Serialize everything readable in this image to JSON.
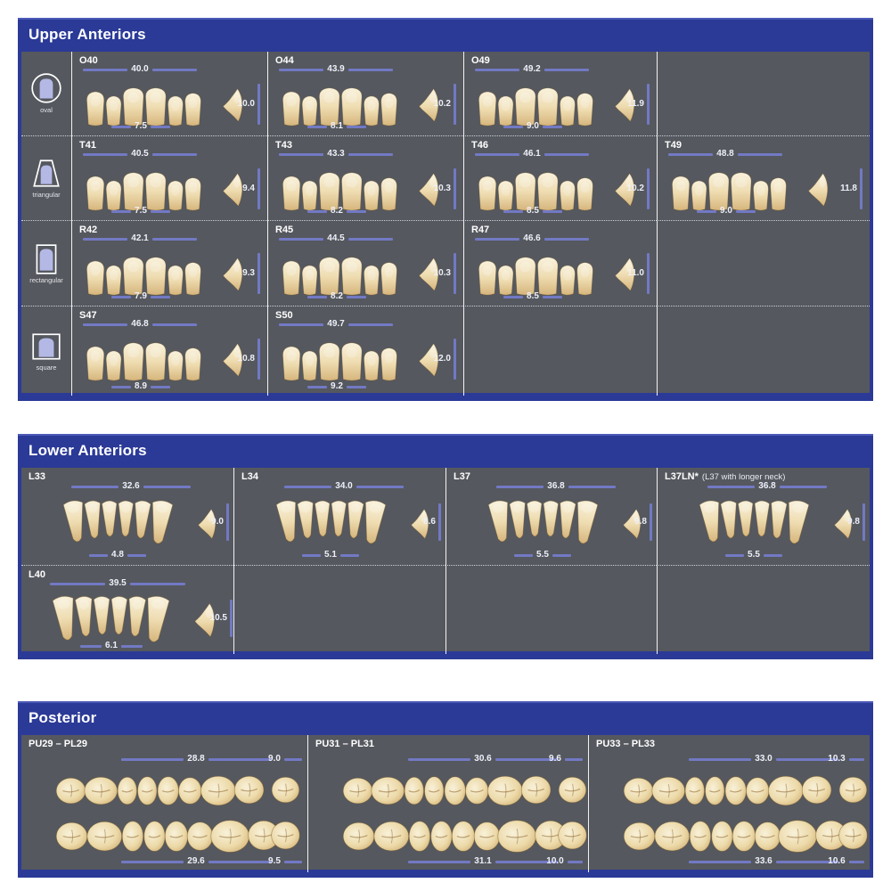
{
  "colors": {
    "panel_blue": "#2b3a97",
    "cell_bg": "#55585e",
    "ruler_line": "#7279c4",
    "tooth_cream": "#efddb2",
    "icon_lavender": "#b4b8e4"
  },
  "sections": {
    "upper": {
      "title": "Upper Anteriors",
      "shapes": [
        {
          "label": "oval"
        },
        {
          "label": "triangular"
        },
        {
          "label": "rectangular"
        },
        {
          "label": "square"
        }
      ],
      "rows": [
        [
          {
            "code": "O40",
            "top": "40.0",
            "side": "10.0",
            "bottom": "7.5"
          },
          {
            "code": "O44",
            "top": "43.9",
            "side": "10.2",
            "bottom": "8.1"
          },
          {
            "code": "O49",
            "top": "49.2",
            "side": "11.9",
            "bottom": "9.0"
          },
          null
        ],
        [
          {
            "code": "T41",
            "top": "40.5",
            "side": "9.4",
            "bottom": "7.5"
          },
          {
            "code": "T43",
            "top": "43.3",
            "side": "10.3",
            "bottom": "8.2"
          },
          {
            "code": "T46",
            "top": "46.1",
            "side": "10.2",
            "bottom": "8.5"
          },
          {
            "code": "T49",
            "top": "48.8",
            "side": "11.8",
            "bottom": "9.0"
          }
        ],
        [
          {
            "code": "R42",
            "top": "42.1",
            "side": "9.3",
            "bottom": "7.9"
          },
          {
            "code": "R45",
            "top": "44.5",
            "side": "10.3",
            "bottom": "8.2"
          },
          {
            "code": "R47",
            "top": "46.6",
            "side": "11.0",
            "bottom": "8.5"
          },
          null
        ],
        [
          {
            "code": "S47",
            "top": "46.8",
            "side": "10.8",
            "bottom": "8.9"
          },
          {
            "code": "S50",
            "top": "49.7",
            "side": "12.0",
            "bottom": "9.2"
          },
          null,
          null
        ]
      ]
    },
    "lower": {
      "title": "Lower Anteriors",
      "rows": [
        [
          {
            "code": "L33",
            "top": "32.6",
            "side": "9.0",
            "bottom": "4.8"
          },
          {
            "code": "L34",
            "top": "34.0",
            "side": "8.6",
            "bottom": "5.1"
          },
          {
            "code": "L37",
            "top": "36.8",
            "side": "9.8",
            "bottom": "5.5"
          },
          {
            "code": "L37LN*",
            "note": "(L37 with longer neck)",
            "top": "36.8",
            "side": "9.8",
            "bottom": "5.5"
          }
        ],
        [
          {
            "code": "L40",
            "top": "39.5",
            "side": "10.5",
            "bottom": "6.1"
          },
          null,
          null,
          null
        ]
      ]
    },
    "posterior": {
      "title": "Posterior",
      "cells": [
        {
          "code": "PU29 – PL29",
          "upper_width": "28.8",
          "upper_height": "9.0",
          "lower_width": "29.6",
          "lower_height": "9.5"
        },
        {
          "code": "PU31 – PL31",
          "upper_width": "30.6",
          "upper_height": "9.6",
          "lower_width": "31.1",
          "lower_height": "10.0"
        },
        {
          "code": "PU33 – PL33",
          "upper_width": "33.0",
          "upper_height": "10.3",
          "lower_width": "33.6",
          "lower_height": "10.6"
        }
      ]
    }
  }
}
